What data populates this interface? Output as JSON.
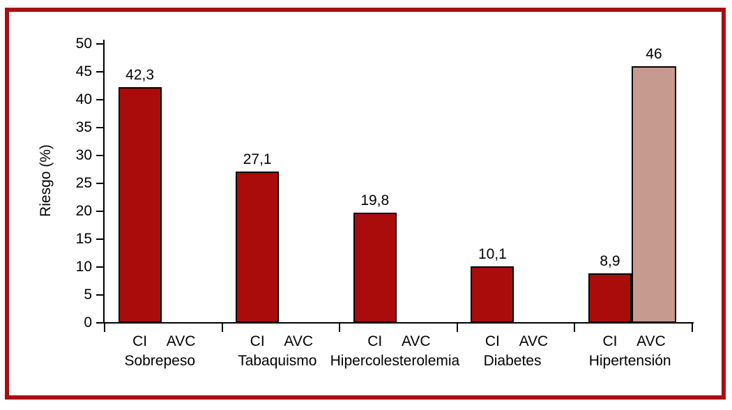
{
  "figure": {
    "frame_color": "#A90E12",
    "background": "#FFFFFF"
  },
  "chart_data": {
    "type": "bar",
    "title": "",
    "xlabel": "",
    "ylabel": "Riesgo (%)",
    "ylim": [
      0,
      50
    ],
    "ytick_step": 5,
    "yticks": [
      0,
      5,
      10,
      15,
      20,
      25,
      30,
      35,
      40,
      45,
      50
    ],
    "categories": [
      "Sobrepeso",
      "Tabaquismo",
      "Hipercolesterolemia",
      "Diabetes",
      "Hipertensión"
    ],
    "group_sublabels": [
      "CI",
      "AVC"
    ],
    "series": [
      {
        "name": "CI",
        "color": "#AA0B0B",
        "values": [
          42.3,
          27.1,
          19.8,
          10.1,
          8.9
        ],
        "value_labels": [
          "42,3",
          "27,1",
          "19,8",
          "10,1",
          "8,9"
        ]
      },
      {
        "name": "AVC",
        "color": "#C79A8F",
        "values": [
          null,
          null,
          null,
          null,
          46
        ],
        "value_labels": [
          null,
          null,
          null,
          null,
          "46"
        ]
      }
    ],
    "grid": false,
    "legend": "none",
    "axis_color": "#000000",
    "text_color": "#000000"
  }
}
